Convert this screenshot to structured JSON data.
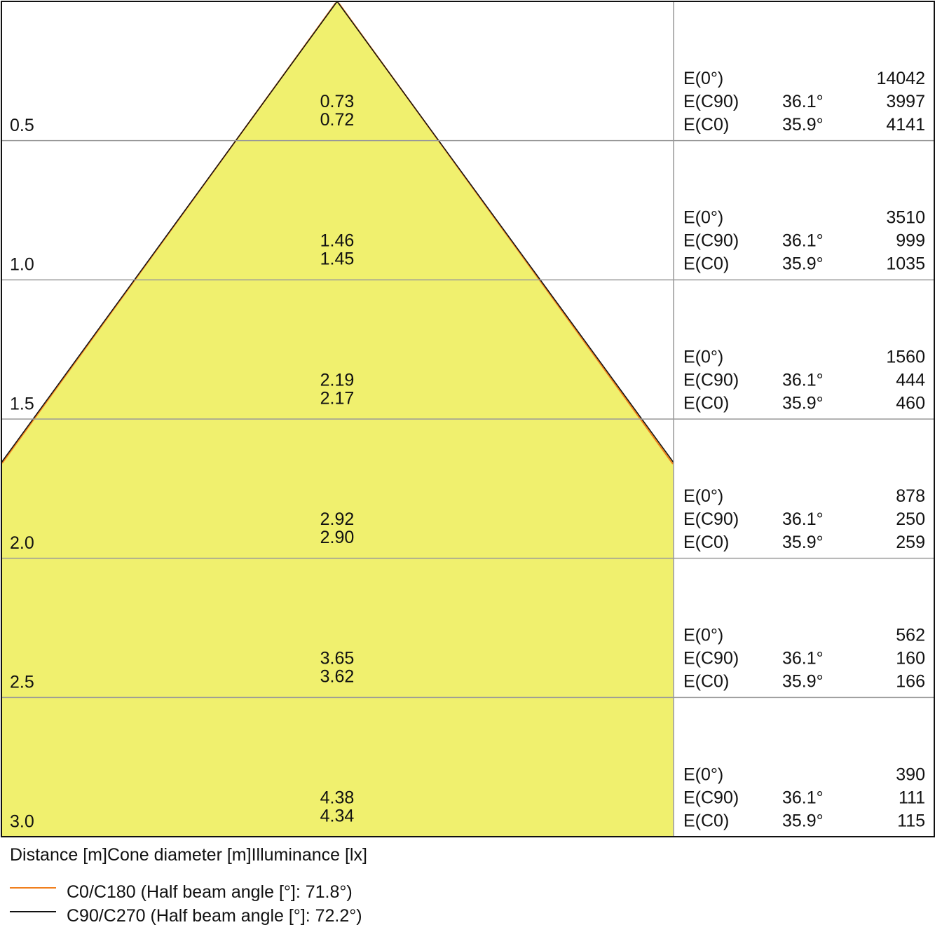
{
  "rows": [
    {
      "distance": "0.5",
      "diameters": [
        "0.73",
        "0.72"
      ],
      "illuminance": [
        {
          "label": "E(0°)",
          "value": "14042"
        },
        {
          "label": "E(C90)",
          "angle": "36.1°",
          "value": "3997"
        },
        {
          "label": "E(C0)",
          "angle": "35.9°",
          "value": "4141"
        }
      ]
    },
    {
      "distance": "1.0",
      "diameters": [
        "1.46",
        "1.45"
      ],
      "illuminance": [
        {
          "label": "E(0°)",
          "value": "3510"
        },
        {
          "label": "E(C90)",
          "angle": "36.1°",
          "value": "999"
        },
        {
          "label": "E(C0)",
          "angle": "35.9°",
          "value": "1035"
        }
      ]
    },
    {
      "distance": "1.5",
      "diameters": [
        "2.19",
        "2.17"
      ],
      "illuminance": [
        {
          "label": "E(0°)",
          "value": "1560"
        },
        {
          "label": "E(C90)",
          "angle": "36.1°",
          "value": "444"
        },
        {
          "label": "E(C0)",
          "angle": "35.9°",
          "value": "460"
        }
      ]
    },
    {
      "distance": "2.0",
      "diameters": [
        "2.92",
        "2.90"
      ],
      "illuminance": [
        {
          "label": "E(0°)",
          "value": "878"
        },
        {
          "label": "E(C90)",
          "angle": "36.1°",
          "value": "250"
        },
        {
          "label": "E(C0)",
          "angle": "35.9°",
          "value": "259"
        }
      ]
    },
    {
      "distance": "2.5",
      "diameters": [
        "3.65",
        "3.62"
      ],
      "illuminance": [
        {
          "label": "E(0°)",
          "value": "562"
        },
        {
          "label": "E(C90)",
          "angle": "36.1°",
          "value": "160"
        },
        {
          "label": "E(C0)",
          "angle": "35.9°",
          "value": "166"
        }
      ]
    },
    {
      "distance": "3.0",
      "diameters": [
        "4.38",
        "4.34"
      ],
      "illuminance": [
        {
          "label": "E(0°)",
          "value": "390"
        },
        {
          "label": "E(C90)",
          "angle": "36.1°",
          "value": "111"
        },
        {
          "label": "E(C0)",
          "angle": "35.9°",
          "value": "115"
        }
      ]
    }
  ],
  "footer": {
    "distance": "Distance [m]",
    "diameter": "Cone diameter [m]",
    "illuminance": "Illuminance [lx]"
  },
  "legend": [
    {
      "label": "C0/C180 (Half beam angle [°]: 71.8°)"
    },
    {
      "label": "C90/C270 (Half beam angle [°]: 72.2°)"
    }
  ]
}
